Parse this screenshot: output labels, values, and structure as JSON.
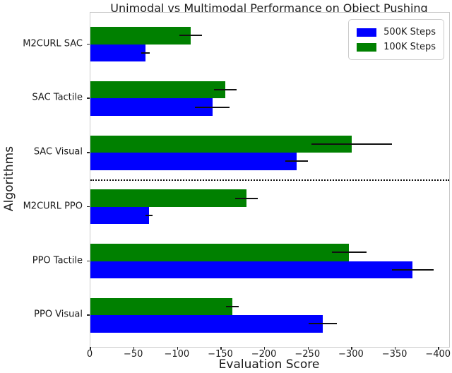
{
  "title": "Unimodal vs Multimodal Performance on Object Pushing",
  "xlabel": "Evaluation Score",
  "ylabel": "Algorithms",
  "legend": [
    {
      "label": "500K Steps",
      "color": "#0000ff"
    },
    {
      "label": "100K Steps",
      "color": "#008000"
    }
  ],
  "chart_data": {
    "type": "bar",
    "orientation": "horizontal",
    "title": "Unimodal vs Multimodal Performance on Object Pushing",
    "xlabel": "Evaluation Score",
    "ylabel": "Algorithms",
    "grid": false,
    "legend_position": "upper right",
    "categories": [
      "M2CURL SAC",
      "SAC Tactile",
      "SAC Visual",
      "M2CURL PPO",
      "PPO Tactile",
      "PPO Visual"
    ],
    "series": [
      {
        "name": "100K Steps",
        "color": "#008000",
        "values": [
          -115,
          -155,
          -300,
          -179,
          -297,
          -163
        ],
        "errors": [
          13,
          13,
          46,
          13,
          20,
          7
        ]
      },
      {
        "name": "500K Steps",
        "color": "#0000ff",
        "values": [
          -63,
          -140,
          -237,
          -67,
          -370,
          -267
        ],
        "errors": [
          5,
          20,
          13,
          4,
          24,
          16
        ]
      }
    ],
    "x_ticks": [
      0,
      -50,
      -100,
      -150,
      -200,
      -250,
      -300,
      -350,
      -400
    ],
    "x_tick_labels": [
      "0",
      "−50",
      "−100",
      "−150",
      "−200",
      "−250",
      "−300",
      "−350",
      "−400"
    ],
    "xlim": [
      0,
      -412
    ],
    "separator_after_category_index": 2
  }
}
